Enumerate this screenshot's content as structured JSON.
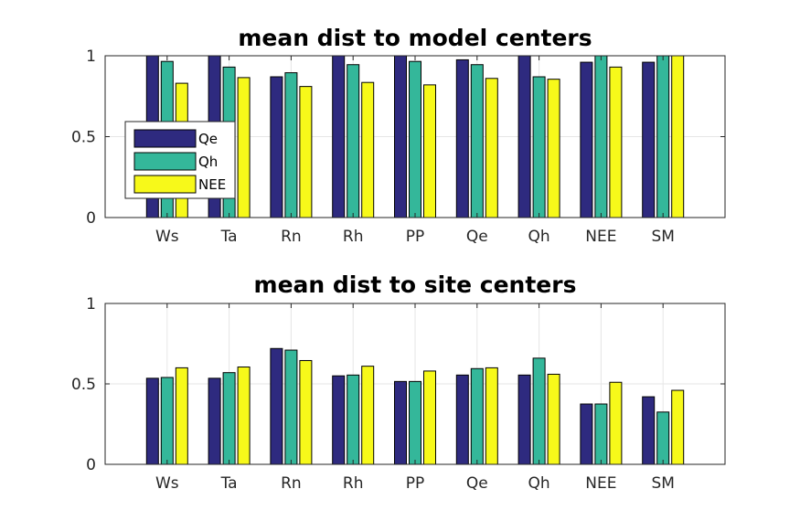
{
  "chart_data": [
    {
      "type": "bar",
      "title": "mean dist to model centers",
      "categories": [
        "Ws",
        "Ta",
        "Rn",
        "Rh",
        "PP",
        "Qe",
        "Qh",
        "NEE",
        "SM"
      ],
      "series": [
        {
          "name": "Qe",
          "values": [
            1.0,
            1.0,
            0.87,
            1.0,
            1.0,
            0.975,
            1.0,
            0.96,
            0.96
          ]
        },
        {
          "name": "Qh",
          "values": [
            0.965,
            0.93,
            0.895,
            0.945,
            0.965,
            0.945,
            0.87,
            1.0,
            1.0
          ]
        },
        {
          "name": "NEE",
          "values": [
            0.83,
            0.865,
            0.81,
            0.835,
            0.82,
            0.86,
            0.855,
            0.93,
            1.0
          ]
        }
      ],
      "ylim": [
        0,
        1
      ],
      "yticks": [
        0,
        0.5,
        1
      ],
      "ytick_labels": [
        "0",
        "0.5",
        "1"
      ],
      "grid": true,
      "legend": "left",
      "colors": [
        "#2e2a7f",
        "#34b79a",
        "#f7f91a"
      ]
    },
    {
      "type": "bar",
      "title": "mean dist to site centers",
      "categories": [
        "Ws",
        "Ta",
        "Rn",
        "Rh",
        "PP",
        "Qe",
        "Qh",
        "NEE",
        "SM"
      ],
      "series": [
        {
          "name": "Qe",
          "values": [
            0.535,
            0.535,
            0.72,
            0.55,
            0.515,
            0.555,
            0.555,
            0.375,
            0.42
          ]
        },
        {
          "name": "Qh",
          "values": [
            0.54,
            0.57,
            0.71,
            0.555,
            0.515,
            0.595,
            0.66,
            0.375,
            0.325
          ]
        },
        {
          "name": "NEE",
          "values": [
            0.6,
            0.605,
            0.645,
            0.61,
            0.58,
            0.6,
            0.56,
            0.51,
            0.46
          ]
        }
      ],
      "ylim": [
        0,
        1
      ],
      "yticks": [
        0,
        0.5,
        1
      ],
      "ytick_labels": [
        "0",
        "0.5",
        "1"
      ],
      "grid": true,
      "colors": [
        "#2e2a7f",
        "#34b79a",
        "#f7f91a"
      ]
    }
  ]
}
